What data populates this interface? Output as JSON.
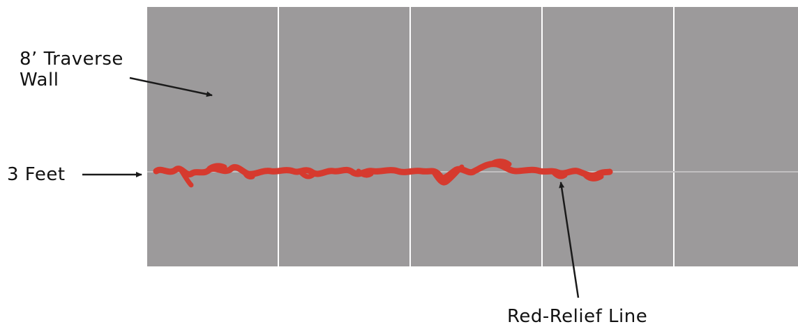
{
  "labels": {
    "wall_line1": "8’ Traverse",
    "wall_line2": "Wall",
    "height": "3 Feet",
    "relief_line": "Red-Relief Line"
  },
  "wall": {
    "panel_count": 5,
    "fill_color": "#9c9a9b",
    "seam_color": "#ffffff"
  },
  "guide_line_color": "#c2c0c1",
  "relief_line_color": "#d63a2e",
  "arrow_color": "#1a1a1a"
}
